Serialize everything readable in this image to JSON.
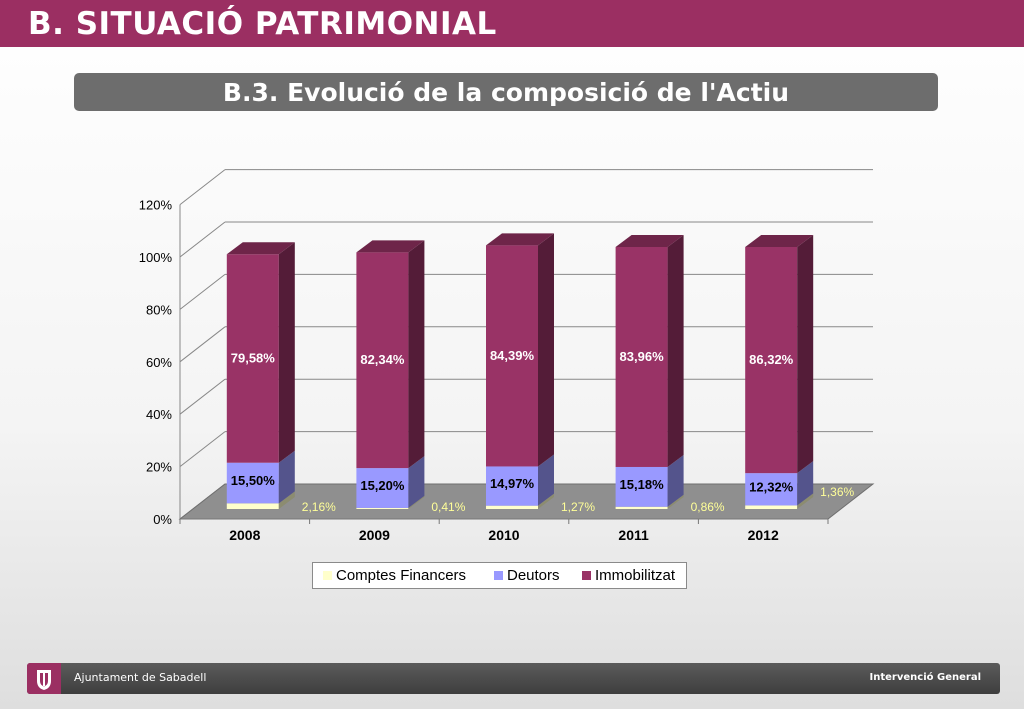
{
  "header": {
    "title": "B. SITUACIÓ PATRIMONIAL"
  },
  "subtitle": {
    "title": "B.3. Evolució de la composició de l'Actiu"
  },
  "footer": {
    "left_text": "Ajuntament de Sabadell",
    "right_text": "Intervenció General"
  },
  "colors": {
    "header_band": "#9b2f62",
    "comptes": "#ffffcc",
    "deutors": "#9999ff",
    "immobilitzat": "#993366"
  },
  "chart_data": {
    "type": "bar",
    "stacked": true,
    "three_d": true,
    "categories": [
      "2008",
      "2009",
      "2010",
      "2011",
      "2012"
    ],
    "ylim": [
      0,
      120
    ],
    "yticks": [
      "0%",
      "20%",
      "40%",
      "60%",
      "80%",
      "100%",
      "120%"
    ],
    "grid": true,
    "legend": "bottom",
    "series": [
      {
        "name": "Comptes Financers",
        "values": [
          2.16,
          0.41,
          1.27,
          0.86,
          1.36
        ],
        "labels": [
          "2,16%",
          "0,41%",
          "1,27%",
          "0,86%",
          "1,36%"
        ]
      },
      {
        "name": "Deutors",
        "values": [
          15.5,
          15.2,
          14.97,
          15.18,
          12.32
        ],
        "labels": [
          "15,50%",
          "15,20%",
          "14,97%",
          "15,18%",
          "12,32%"
        ]
      },
      {
        "name": "Immobilitzat",
        "values": [
          79.58,
          82.34,
          84.39,
          83.96,
          86.32
        ],
        "labels": [
          "79,58%",
          "82,34%",
          "84,39%",
          "83,96%",
          "86,32%"
        ]
      }
    ]
  }
}
